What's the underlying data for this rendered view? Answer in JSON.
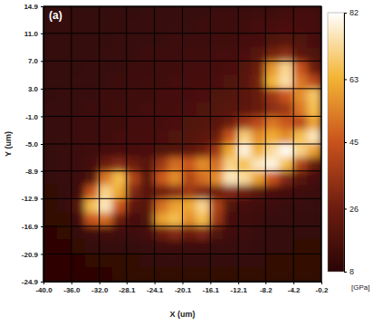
{
  "chart_data": {
    "type": "heatmap",
    "title": "(a)",
    "xlabel": "X (um)",
    "ylabel": "Y (um)",
    "xlim": [
      -40,
      -0.2
    ],
    "ylim": [
      -24.9,
      14.9
    ],
    "xticks": [
      {
        "value": -40,
        "label": "-40.0"
      },
      {
        "value": -36,
        "label": "-36.0"
      },
      {
        "value": -32,
        "label": "-32.0"
      },
      -28.1,
      -24.1,
      -20.1,
      -16.1,
      -12.1,
      -8.2,
      -4.2,
      -0.2
    ],
    "yticks": [
      14.9,
      {
        "value": 11,
        "label": "11.0"
      },
      {
        "value": 7,
        "label": "7.0"
      },
      {
        "value": 3,
        "label": "3.0"
      },
      {
        "value": -1,
        "label": "-1.0"
      },
      {
        "value": -5,
        "label": "-5.0"
      },
      -8.9,
      -12.9,
      -16.9,
      -20.9,
      -24.9
    ],
    "grid": true,
    "x": [
      -39,
      -37,
      -35,
      -33,
      -31.1,
      -29.1,
      -27.1,
      -25.1,
      -23.1,
      -21.1,
      -19.1,
      -17.1,
      -15.2,
      -13.2,
      -11.2,
      -9.2,
      -7.2,
      -5.2,
      -3.2,
      -1.2
    ],
    "y": [
      13.9,
      11.9,
      9.9,
      7.9,
      5.9,
      3.9,
      2,
      0,
      -2,
      -4,
      -6,
      -8,
      -10,
      -12,
      -14,
      -16,
      -17.9,
      -19.9,
      -21.9,
      -23.9
    ],
    "z": [
      [
        11,
        11,
        11,
        11,
        11,
        11,
        11,
        12,
        12,
        12,
        12,
        12,
        13,
        13,
        13,
        14,
        14,
        15,
        15,
        15
      ],
      [
        11,
        11,
        11,
        11,
        11,
        11,
        12,
        12,
        12,
        12,
        12,
        13,
        13,
        13,
        14,
        15,
        16,
        17,
        16,
        15
      ],
      [
        11,
        11,
        11,
        11,
        11,
        12,
        12,
        12,
        12,
        13,
        13,
        13,
        14,
        14,
        15,
        16,
        18,
        20,
        18,
        16
      ],
      [
        11,
        11,
        11,
        11,
        12,
        12,
        12,
        13,
        13,
        13,
        14,
        14,
        15,
        15,
        17,
        20,
        28,
        32,
        22,
        18
      ],
      [
        11,
        11,
        11,
        12,
        12,
        12,
        13,
        13,
        14,
        14,
        15,
        15,
        16,
        17,
        19,
        26,
        58,
        72,
        45,
        26
      ],
      [
        11,
        11,
        12,
        12,
        12,
        13,
        13,
        14,
        14,
        15,
        15,
        16,
        17,
        18,
        20,
        28,
        64,
        74,
        52,
        42
      ],
      [
        11,
        12,
        12,
        12,
        13,
        13,
        14,
        14,
        15,
        15,
        16,
        17,
        18,
        19,
        21,
        24,
        36,
        46,
        56,
        68
      ],
      [
        12,
        12,
        12,
        13,
        13,
        14,
        14,
        15,
        15,
        16,
        17,
        18,
        19,
        20,
        22,
        24,
        32,
        36,
        52,
        66
      ],
      [
        12,
        12,
        13,
        13,
        14,
        14,
        15,
        15,
        16,
        17,
        18,
        19,
        21,
        26,
        36,
        42,
        52,
        46,
        42,
        60
      ],
      [
        12,
        12,
        13,
        13,
        14,
        15,
        15,
        16,
        17,
        18,
        19,
        21,
        26,
        46,
        70,
        56,
        62,
        56,
        66,
        76
      ],
      [
        11,
        12,
        13,
        14,
        15,
        16,
        16,
        17,
        18,
        19,
        22,
        26,
        36,
        62,
        79,
        63,
        73,
        81,
        71,
        60
      ],
      [
        11,
        12,
        13,
        15,
        26,
        31,
        26,
        20,
        36,
        50,
        46,
        56,
        50,
        71,
        66,
        76,
        79,
        66,
        40,
        24
      ],
      [
        11,
        12,
        13,
        18,
        52,
        66,
        40,
        20,
        46,
        56,
        40,
        50,
        56,
        76,
        73,
        60,
        45,
        30,
        20,
        16
      ],
      [
        10,
        11,
        14,
        46,
        71,
        61,
        30,
        20,
        26,
        30,
        36,
        30,
        26,
        30,
        26,
        20,
        17,
        15,
        14,
        13
      ],
      [
        10,
        11,
        20,
        66,
        76,
        46,
        22,
        20,
        50,
        60,
        61,
        72,
        40,
        18,
        15,
        14,
        13,
        12,
        12,
        12
      ],
      [
        10,
        10,
        14,
        46,
        50,
        26,
        16,
        18,
        60,
        66,
        56,
        66,
        36,
        16,
        14,
        13,
        12,
        12,
        11,
        11
      ],
      [
        9,
        10,
        11,
        14,
        15,
        14,
        13,
        15,
        26,
        31,
        26,
        30,
        18,
        14,
        13,
        12,
        11,
        11,
        11,
        11
      ],
      [
        9,
        9,
        10,
        11,
        11,
        11,
        11,
        12,
        13,
        14,
        13,
        13,
        12,
        12,
        12,
        11,
        11,
        11,
        10,
        10
      ],
      [
        9,
        9,
        9,
        10,
        10,
        10,
        10,
        11,
        11,
        11,
        11,
        11,
        11,
        11,
        11,
        11,
        10,
        10,
        10,
        10
      ],
      [
        9,
        9,
        9,
        9,
        9,
        10,
        10,
        10,
        10,
        10,
        10,
        10,
        10,
        10,
        10,
        10,
        10,
        10,
        10,
        10
      ]
    ],
    "zlim": [
      8,
      82
    ],
    "zticks": [
      8,
      26,
      45,
      63,
      82
    ],
    "zlabel": "[GPa]"
  }
}
